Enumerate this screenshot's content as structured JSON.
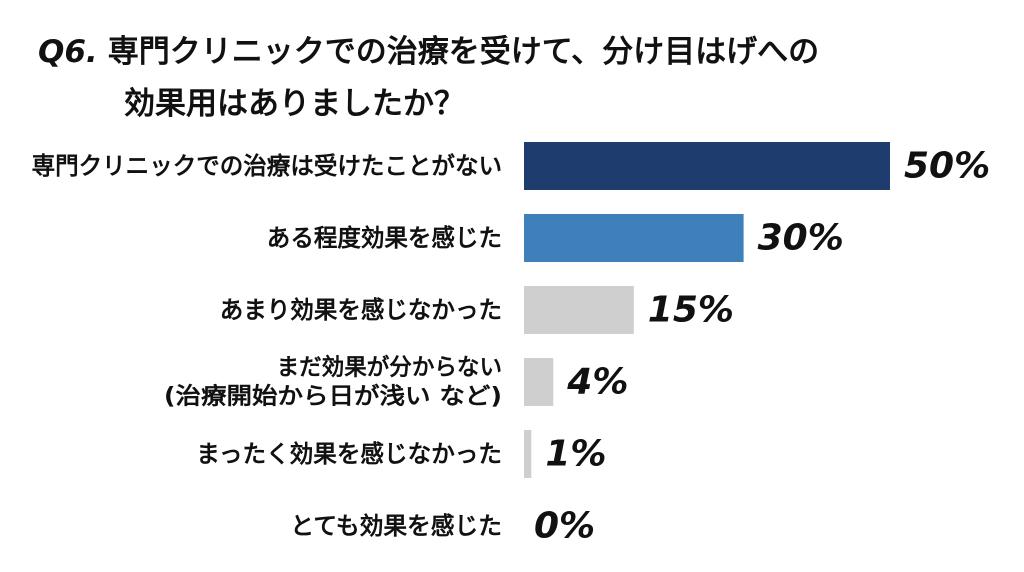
{
  "question": {
    "number": "Q6.",
    "line1": "専門クリニックでの治療を受けて、分け目はげへの",
    "line2": "効果用はありましたか？"
  },
  "chart_data": {
    "type": "bar",
    "orientation": "horizontal",
    "title": "Q6. 専門クリニックでの治療を受けて、分け目はげへの効果用はありましたか？",
    "unit": "%",
    "categories": [
      [
        "専門クリニックでの治療は受けたことがない"
      ],
      [
        "ある程度効果を感じた"
      ],
      [
        "あまり効果を感じなかった"
      ],
      [
        "まだ効果が分からない",
        "(治療開始から日が浅い など)"
      ],
      [
        "まったく効果を感じなかった"
      ],
      [
        "とても効果を感じた"
      ]
    ],
    "values": [
      50,
      30,
      15,
      4,
      1,
      0
    ],
    "value_labels": [
      "50%",
      "30%",
      "15%",
      "4%",
      "1%",
      "0%"
    ],
    "colors": [
      "#1f3c6e",
      "#3f7fba",
      "#cfcfcf",
      "#cfcfcf",
      "#cfcfcf",
      "#cfcfcf"
    ],
    "xlim": [
      0,
      50
    ],
    "grid": false,
    "legend": "none"
  }
}
